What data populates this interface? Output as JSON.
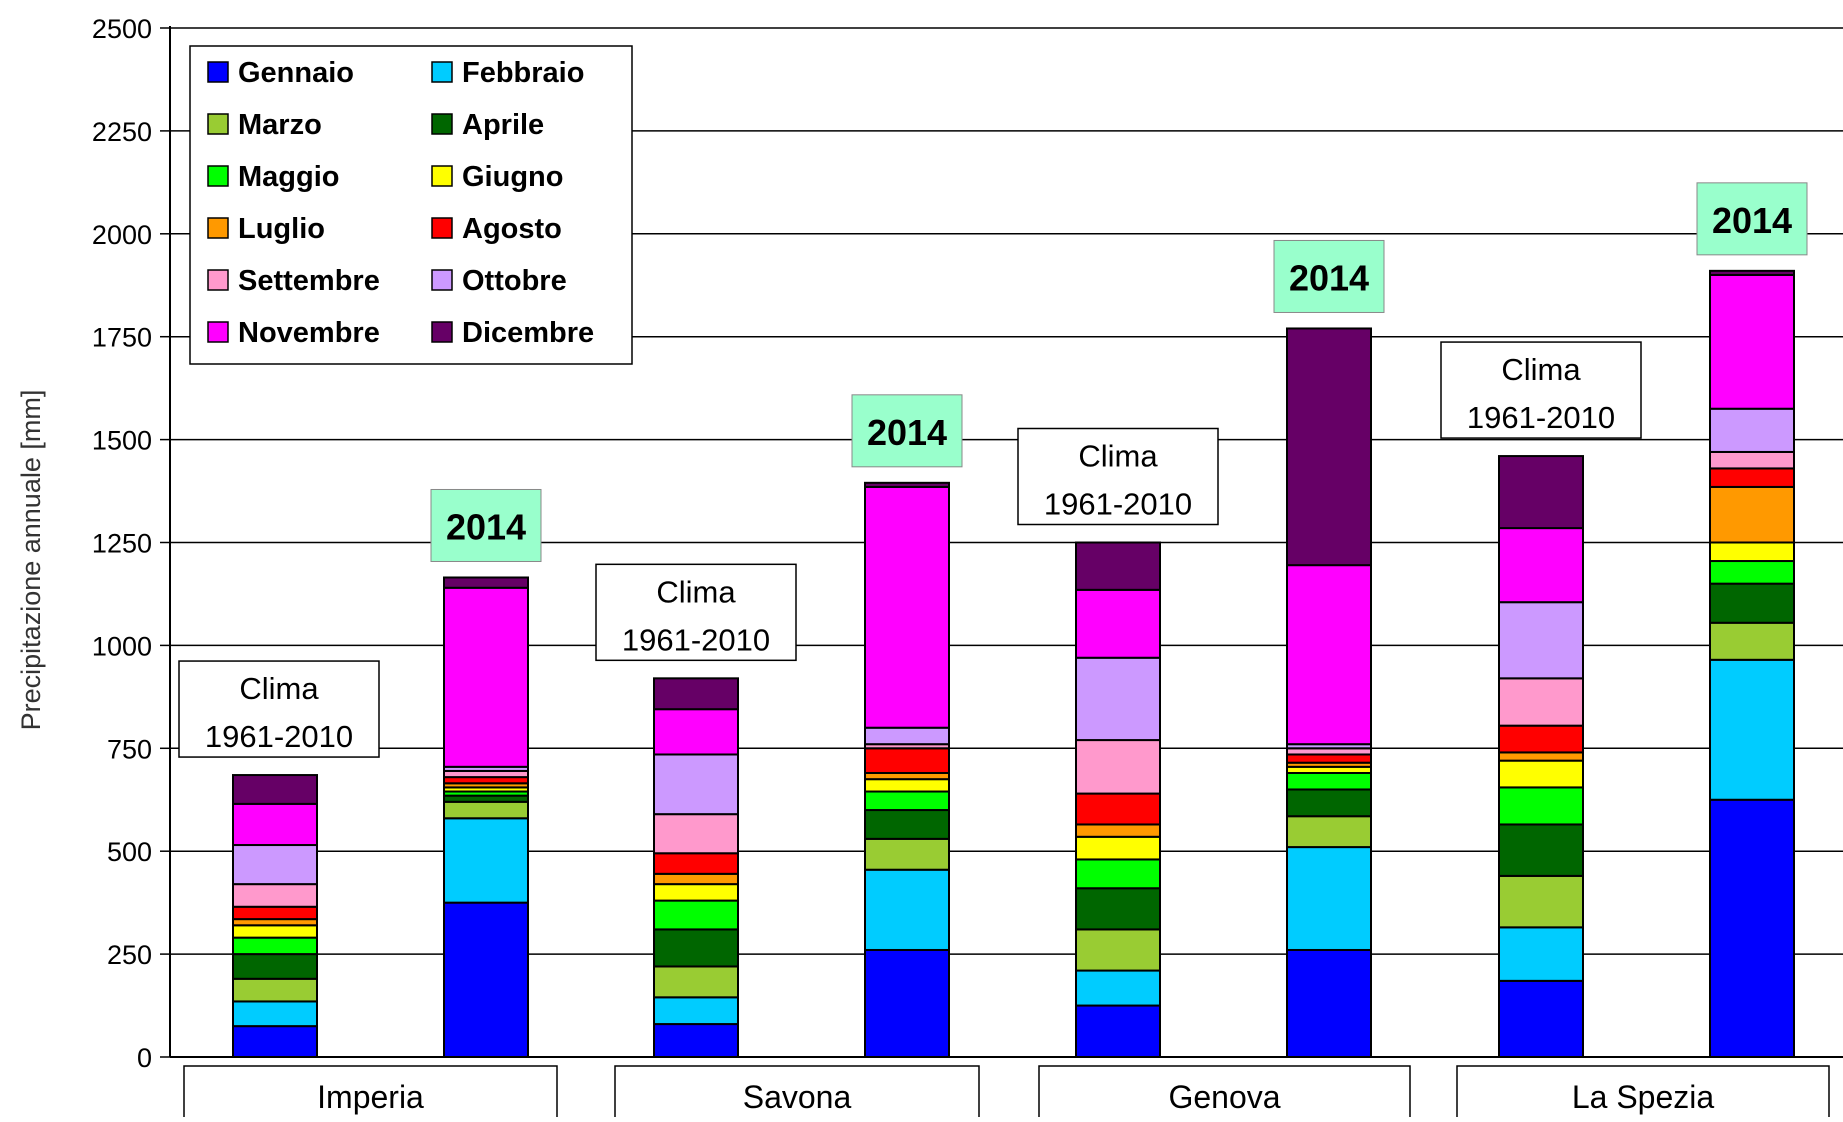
{
  "chart_data": {
    "type": "bar",
    "stacked": true,
    "ylabel": "Precipitazione annuale [mm]",
    "ylim": [
      0,
      2500
    ],
    "yticks": [
      0,
      250,
      500,
      750,
      1000,
      1250,
      1500,
      1750,
      2000,
      2250,
      2500
    ],
    "grid": true,
    "legend_position": "top-left",
    "months": [
      {
        "name": "Gennaio",
        "color": "#0000FF"
      },
      {
        "name": "Febbraio",
        "color": "#00CCFF"
      },
      {
        "name": "Marzo",
        "color": "#99CC33"
      },
      {
        "name": "Aprile",
        "color": "#006600"
      },
      {
        "name": "Maggio",
        "color": "#00FF00"
      },
      {
        "name": "Giugno",
        "color": "#FFFF00"
      },
      {
        "name": "Luglio",
        "color": "#FF9900"
      },
      {
        "name": "Agosto",
        "color": "#FF0000"
      },
      {
        "name": "Settembre",
        "color": "#FF99CC"
      },
      {
        "name": "Ottobre",
        "color": "#CC99FF"
      },
      {
        "name": "Novembre",
        "color": "#FF00FF"
      },
      {
        "name": "Dicembre",
        "color": "#660066"
      }
    ],
    "groups": [
      {
        "name": "Imperia",
        "bars": [
          {
            "label": "Clima\n1961-2010",
            "style": "clima",
            "values": [
              75,
              60,
              55,
              60,
              40,
              30,
              15,
              30,
              55,
              95,
              100,
              70
            ]
          },
          {
            "label": "2014",
            "style": "year",
            "values": [
              375,
              205,
              40,
              15,
              10,
              10,
              10,
              15,
              15,
              10,
              435,
              25
            ]
          }
        ]
      },
      {
        "name": "Savona",
        "bars": [
          {
            "label": "Clima\n1961-2010",
            "style": "clima",
            "values": [
              80,
              65,
              75,
              90,
              70,
              40,
              25,
              50,
              95,
              145,
              110,
              75
            ]
          },
          {
            "label": "2014",
            "style": "year",
            "values": [
              260,
              195,
              75,
              70,
              45,
              30,
              15,
              60,
              10,
              40,
              585,
              10
            ]
          }
        ]
      },
      {
        "name": "Genova",
        "bars": [
          {
            "label": "Clima\n1961-2010",
            "style": "clima",
            "values": [
              125,
              85,
              100,
              100,
              70,
              55,
              30,
              75,
              130,
              200,
              165,
              115
            ]
          },
          {
            "label": "2014",
            "style": "year",
            "values": [
              260,
              250,
              75,
              65,
              40,
              15,
              10,
              20,
              15,
              10,
              435,
              575
            ]
          }
        ]
      },
      {
        "name": "La Spezia",
        "bars": [
          {
            "label": "Clima\n1961-2010",
            "style": "clima",
            "values": [
              185,
              130,
              125,
              125,
              90,
              65,
              20,
              65,
              115,
              185,
              180,
              175
            ]
          },
          {
            "label": "2014",
            "style": "year",
            "values": [
              625,
              340,
              90,
              95,
              55,
              45,
              135,
              45,
              40,
              105,
              325,
              10
            ]
          }
        ]
      }
    ]
  }
}
